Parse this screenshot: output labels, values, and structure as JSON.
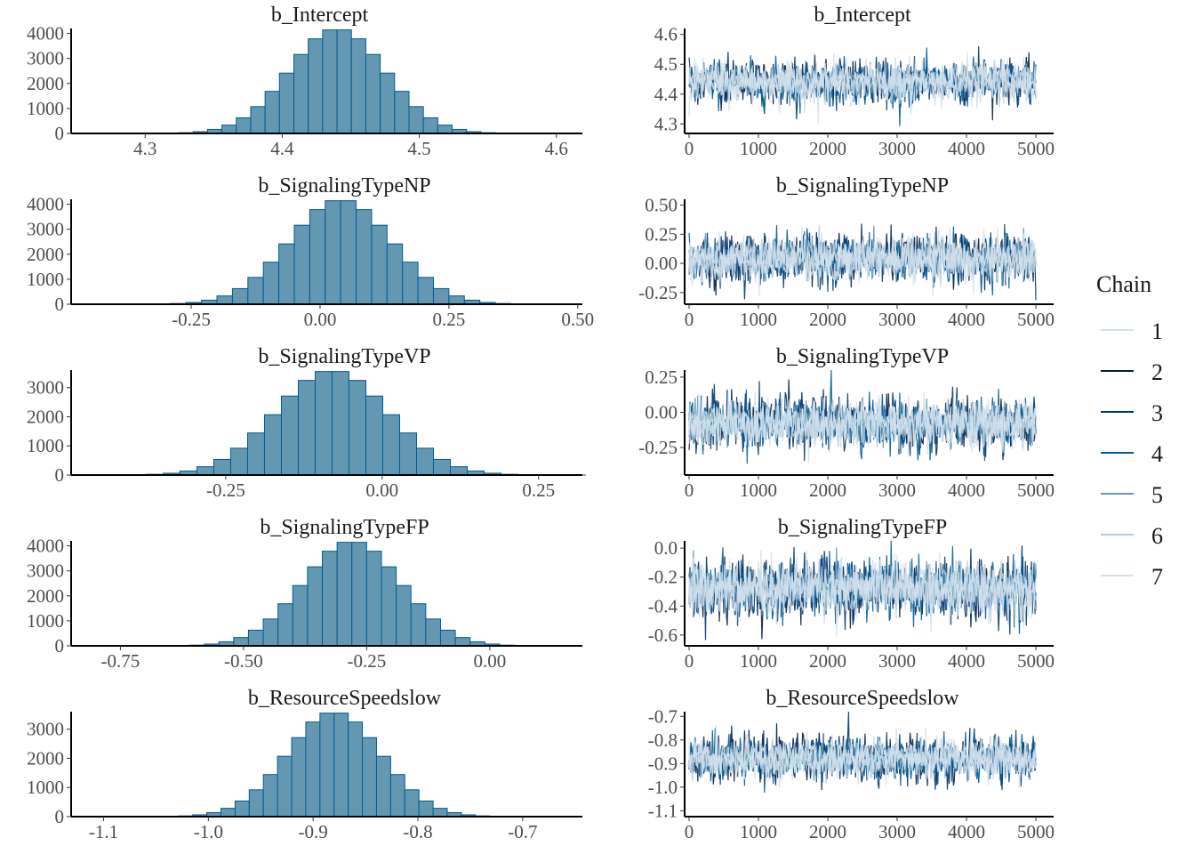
{
  "chart_data": [
    {
      "type": "bar",
      "panel": "histogram",
      "title": "b_Intercept",
      "mean": 4.44,
      "sd": 0.035,
      "draws": 35000,
      "xlim": [
        4.246,
        4.619
      ],
      "xticks": [
        4.3,
        4.4,
        4.5,
        4.6
      ],
      "xticklabels": [
        "4.3",
        "4.4",
        "4.5",
        "4.6"
      ],
      "yticks": [
        0,
        1000,
        2000,
        3000,
        4000
      ],
      "ylim": [
        0,
        4200
      ]
    },
    {
      "type": "line",
      "panel": "trace",
      "title": "b_Intercept",
      "mean": 4.44,
      "sd": 0.035,
      "xlim": [
        0,
        5000
      ],
      "ylim": [
        4.28,
        4.62
      ],
      "xticks": [
        0,
        1000,
        2000,
        3000,
        4000,
        5000
      ],
      "yticks": [
        4.3,
        4.4,
        4.5,
        4.6
      ],
      "yticklabels": [
        "4.3",
        "4.4",
        "4.5",
        "4.6"
      ]
    },
    {
      "type": "bar",
      "panel": "histogram",
      "title": "b_SignalingTypeNP",
      "mean": 0.04,
      "sd": 0.1,
      "draws": 35000,
      "xlim": [
        -0.483,
        0.509
      ],
      "xticks": [
        -0.25,
        0,
        0.25,
        0.5
      ],
      "xticklabels": [
        "-0.25",
        "0.00",
        "0.25",
        "0.50"
      ],
      "yticks": [
        0,
        1000,
        2000,
        3000,
        4000
      ],
      "ylim": [
        0,
        4200
      ]
    },
    {
      "type": "line",
      "panel": "trace",
      "title": "b_SignalingTypeNP",
      "mean": 0.04,
      "sd": 0.1,
      "xlim": [
        0,
        5000
      ],
      "ylim": [
        -0.32,
        0.55
      ],
      "xticks": [
        0,
        1000,
        2000,
        3000,
        4000,
        5000
      ],
      "yticks": [
        -0.25,
        0,
        0.25,
        0.5
      ],
      "yticklabels": [
        "-0.25",
        "0.00",
        "0.25",
        "0.50"
      ]
    },
    {
      "type": "bar",
      "panel": "histogram",
      "title": "b_SignalingTypeVP",
      "mean": -0.08,
      "sd": 0.09,
      "draws": 30000,
      "xlim": [
        -0.497,
        0.32
      ],
      "xticks": [
        -0.25,
        0,
        0.25
      ],
      "xticklabels": [
        "-0.25",
        "0.00",
        "0.25"
      ],
      "yticks": [
        0,
        1000,
        2000,
        3000
      ],
      "ylim": [
        0,
        3600
      ]
    },
    {
      "type": "line",
      "panel": "trace",
      "title": "b_SignalingTypeVP",
      "mean": -0.08,
      "sd": 0.09,
      "xlim": [
        0,
        5000
      ],
      "ylim": [
        -0.42,
        0.3
      ],
      "xticks": [
        0,
        1000,
        2000,
        3000,
        4000,
        5000
      ],
      "yticks": [
        -0.25,
        0,
        0.25
      ],
      "yticklabels": [
        "-0.25",
        "0.00",
        "0.25"
      ]
    },
    {
      "type": "bar",
      "panel": "histogram",
      "title": "b_SignalingTypeFP",
      "mean": -0.28,
      "sd": 0.1,
      "draws": 35000,
      "xlim": [
        -0.85,
        0.188
      ],
      "xticks": [
        -0.75,
        -0.5,
        -0.25,
        0
      ],
      "xticklabels": [
        "-0.75",
        "-0.50",
        "-0.25",
        "0.00"
      ],
      "yticks": [
        0,
        1000,
        2000,
        3000,
        4000
      ],
      "ylim": [
        0,
        4200
      ]
    },
    {
      "type": "line",
      "panel": "trace",
      "title": "b_SignalingTypeFP",
      "mean": -0.28,
      "sd": 0.1,
      "xlim": [
        0,
        5000
      ],
      "ylim": [
        -0.65,
        0.05
      ],
      "xticks": [
        0,
        1000,
        2000,
        3000,
        4000,
        5000
      ],
      "yticks": [
        -0.6,
        -0.4,
        -0.2,
        0
      ],
      "yticklabels": [
        "-0.6",
        "-0.4",
        "-0.2",
        "0.0"
      ]
    },
    {
      "type": "bar",
      "panel": "histogram",
      "title": "b_ResourceSpeedslow",
      "mean": -0.88,
      "sd": 0.045,
      "draws": 30000,
      "xlim": [
        -1.131,
        -0.643
      ],
      "xticks": [
        -1.1,
        -1.0,
        -0.9,
        -0.8,
        -0.7
      ],
      "xticklabels": [
        "-1.1",
        "-1.0",
        "-0.9",
        "-0.8",
        "-0.7"
      ],
      "yticks": [
        0,
        1000,
        2000,
        3000
      ],
      "ylim": [
        0,
        3600
      ]
    },
    {
      "type": "line",
      "panel": "trace",
      "title": "b_ResourceSpeedslow",
      "mean": -0.88,
      "sd": 0.045,
      "xlim": [
        0,
        5000
      ],
      "ylim": [
        -1.11,
        -0.68
      ],
      "xticks": [
        0,
        1000,
        2000,
        3000,
        4000,
        5000
      ],
      "yticks": [
        -1.1,
        -1.0,
        -0.9,
        -0.8,
        -0.7
      ],
      "yticklabels": [
        "-1.1",
        "-1.0",
        "-0.9",
        "-0.8",
        "-0.7"
      ]
    }
  ],
  "legend": {
    "title": "Chain",
    "placement": "right",
    "items": [
      {
        "label": "1",
        "color": "#d1e1ec"
      },
      {
        "label": "2",
        "color": "#011f4b"
      },
      {
        "label": "3",
        "color": "#03396c"
      },
      {
        "label": "4",
        "color": "#005b96"
      },
      {
        "label": "5",
        "color": "#6497b1"
      },
      {
        "label": "6",
        "color": "#b3cde0"
      },
      {
        "label": "7",
        "color": "#d1e1ec"
      }
    ]
  },
  "colors": {
    "hist_fill": "#6497b1",
    "hist_stroke": "#005b96",
    "axis": "#000000"
  }
}
